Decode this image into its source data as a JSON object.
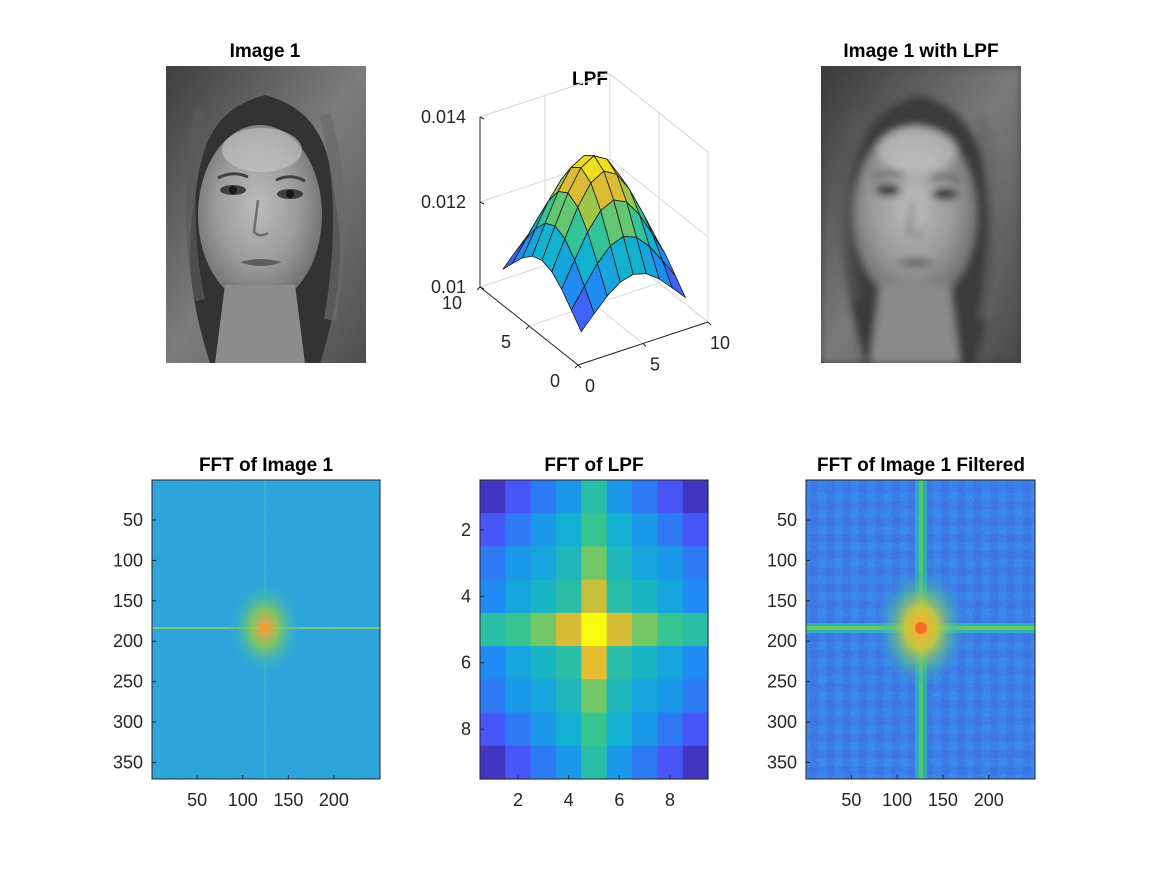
{
  "colors": {
    "background": "#ffffff",
    "axis": "#262626"
  },
  "chart_data": [
    {
      "type": "image",
      "title": "Image 1",
      "colormap": "gray",
      "content": "grayscale photograph"
    },
    {
      "type": "surface",
      "title": "LPF",
      "colormap": "parula",
      "x_ticks": [
        0,
        5,
        10
      ],
      "y_ticks": [
        0,
        5,
        10
      ],
      "z_ticks": [
        0.01,
        0.012,
        0.014
      ],
      "xlim": [
        0,
        10
      ],
      "ylim": [
        0,
        10
      ],
      "zlim": [
        0.01,
        0.014
      ],
      "grid": true,
      "grid_size": 9,
      "z_min": 0.0105,
      "z_max": 0.0135
    },
    {
      "type": "image",
      "title": "Image 1 with LPF",
      "colormap": "gray",
      "content": "blurred grayscale photograph"
    },
    {
      "type": "heatmap",
      "title": "FFT of Image 1",
      "colormap": "parula",
      "x_ticks": [
        50,
        100,
        150,
        200
      ],
      "y_ticks": [
        50,
        100,
        150,
        200,
        250,
        300,
        350
      ],
      "xlim": [
        0.5,
        250.5
      ],
      "ylim": [
        0.5,
        370.5
      ],
      "y_reversed": true,
      "peak": [
        125,
        186
      ],
      "grid": false
    },
    {
      "type": "heatmap",
      "title": "FFT of LPF",
      "colormap": "parula",
      "x_ticks": [
        2,
        4,
        6,
        8
      ],
      "y_ticks": [
        2,
        4,
        6,
        8
      ],
      "xlim": [
        0.5,
        9.5
      ],
      "ylim": [
        0.5,
        9.5
      ],
      "y_reversed": true,
      "values": [
        [
          0.05,
          0.15,
          0.25,
          0.35,
          0.55,
          0.35,
          0.25,
          0.15,
          0.05
        ],
        [
          0.15,
          0.25,
          0.35,
          0.45,
          0.6,
          0.45,
          0.35,
          0.25,
          0.15
        ],
        [
          0.25,
          0.35,
          0.4,
          0.5,
          0.68,
          0.5,
          0.4,
          0.35,
          0.25
        ],
        [
          0.3,
          0.4,
          0.48,
          0.55,
          0.8,
          0.55,
          0.48,
          0.4,
          0.3
        ],
        [
          0.55,
          0.6,
          0.68,
          0.82,
          1.0,
          0.82,
          0.68,
          0.6,
          0.55
        ],
        [
          0.3,
          0.4,
          0.48,
          0.55,
          0.85,
          0.55,
          0.48,
          0.4,
          0.3
        ],
        [
          0.25,
          0.35,
          0.4,
          0.5,
          0.68,
          0.5,
          0.4,
          0.35,
          0.25
        ],
        [
          0.15,
          0.25,
          0.35,
          0.45,
          0.6,
          0.45,
          0.35,
          0.25,
          0.15
        ],
        [
          0.05,
          0.15,
          0.25,
          0.35,
          0.55,
          0.35,
          0.25,
          0.15,
          0.05
        ]
      ],
      "grid": false
    },
    {
      "type": "heatmap",
      "title": "FFT of Image 1 Filtered",
      "colormap": "parula",
      "x_ticks": [
        50,
        100,
        150,
        200
      ],
      "y_ticks": [
        50,
        100,
        150,
        200,
        250,
        300,
        350
      ],
      "xlim": [
        0.5,
        250.5
      ],
      "ylim": [
        0.5,
        370.5
      ],
      "y_reversed": true,
      "peak": [
        125,
        186
      ],
      "grid": false
    }
  ]
}
